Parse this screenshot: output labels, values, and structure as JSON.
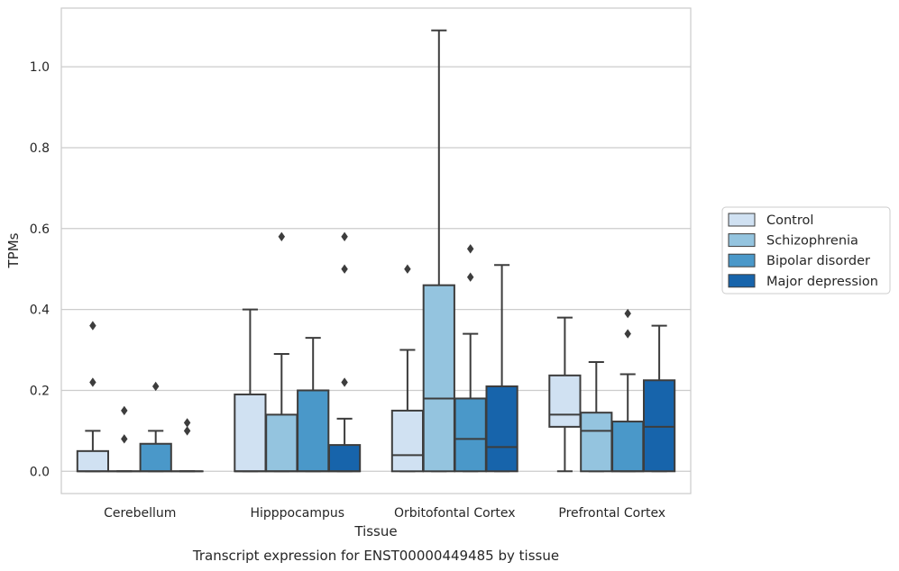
{
  "chart_data": {
    "type": "box",
    "title": "",
    "caption": "Transcript expression for ENST00000449485 by tissue",
    "xlabel": "Tissue",
    "ylabel": "TPMs",
    "ylim": [
      -0.055,
      1.145
    ],
    "yticks": [
      0.0,
      0.2,
      0.4,
      0.6,
      0.8,
      1.0
    ],
    "ytick_labels": [
      "0.0",
      "0.2",
      "0.4",
      "0.6",
      "0.8",
      "1.0"
    ],
    "grid": "horizontal",
    "legend_position": "outside-right",
    "categories": [
      "Cerebellum",
      "Hipppocampus",
      "Orbitofontal Cortex",
      "Prefrontal Cortex"
    ],
    "series": [
      {
        "name": "Control",
        "color": "#d0e1f2",
        "boxes": [
          {
            "q1": 0.0,
            "median": 0.0,
            "q3": 0.05,
            "whisker_low": 0.0,
            "whisker_high": 0.1,
            "outliers": [
              0.22,
              0.36
            ]
          },
          {
            "q1": 0.0,
            "median": 0.0,
            "q3": 0.19,
            "whisker_low": 0.0,
            "whisker_high": 0.4,
            "outliers": []
          },
          {
            "q1": 0.0,
            "median": 0.04,
            "q3": 0.15,
            "whisker_low": 0.0,
            "whisker_high": 0.3,
            "outliers": [
              0.5
            ]
          },
          {
            "q1": 0.11,
            "median": 0.14,
            "q3": 0.237,
            "whisker_low": 0.0,
            "whisker_high": 0.38,
            "outliers": []
          }
        ]
      },
      {
        "name": "Schizophrenia",
        "color": "#94c4df",
        "boxes": [
          {
            "q1": 0.0,
            "median": 0.0,
            "q3": 0.0,
            "whisker_low": 0.0,
            "whisker_high": 0.0,
            "outliers": [
              0.08,
              0.15
            ]
          },
          {
            "q1": 0.0,
            "median": 0.0,
            "q3": 0.14,
            "whisker_low": 0.0,
            "whisker_high": 0.29,
            "outliers": [
              0.58
            ]
          },
          {
            "q1": 0.0,
            "median": 0.18,
            "q3": 0.46,
            "whisker_low": 0.0,
            "whisker_high": 1.09,
            "outliers": []
          },
          {
            "q1": 0.0,
            "median": 0.1,
            "q3": 0.145,
            "whisker_low": 0.0,
            "whisker_high": 0.27,
            "outliers": []
          }
        ]
      },
      {
        "name": "Bipolar disorder",
        "color": "#4a98c9",
        "boxes": [
          {
            "q1": 0.0,
            "median": 0.0,
            "q3": 0.068,
            "whisker_low": 0.0,
            "whisker_high": 0.1,
            "outliers": [
              0.21
            ]
          },
          {
            "q1": 0.0,
            "median": 0.0,
            "q3": 0.2,
            "whisker_low": 0.0,
            "whisker_high": 0.33,
            "outliers": []
          },
          {
            "q1": 0.0,
            "median": 0.08,
            "q3": 0.18,
            "whisker_low": 0.0,
            "whisker_high": 0.34,
            "outliers": [
              0.48,
              0.55
            ]
          },
          {
            "q1": 0.0,
            "median": 0.0,
            "q3": 0.123,
            "whisker_low": 0.0,
            "whisker_high": 0.24,
            "outliers": [
              0.34,
              0.39
            ]
          }
        ]
      },
      {
        "name": "Major depression",
        "color": "#1764ab",
        "boxes": [
          {
            "q1": 0.0,
            "median": 0.0,
            "q3": 0.0,
            "whisker_low": 0.0,
            "whisker_high": 0.0,
            "outliers": [
              0.1,
              0.12
            ]
          },
          {
            "q1": 0.0,
            "median": 0.0,
            "q3": 0.065,
            "whisker_low": 0.0,
            "whisker_high": 0.13,
            "outliers": [
              0.22,
              0.5,
              0.58
            ]
          },
          {
            "q1": 0.0,
            "median": 0.06,
            "q3": 0.21,
            "whisker_low": 0.0,
            "whisker_high": 0.51,
            "outliers": []
          },
          {
            "q1": 0.0,
            "median": 0.11,
            "q3": 0.225,
            "whisker_low": 0.0,
            "whisker_high": 0.36,
            "outliers": []
          }
        ]
      }
    ]
  }
}
